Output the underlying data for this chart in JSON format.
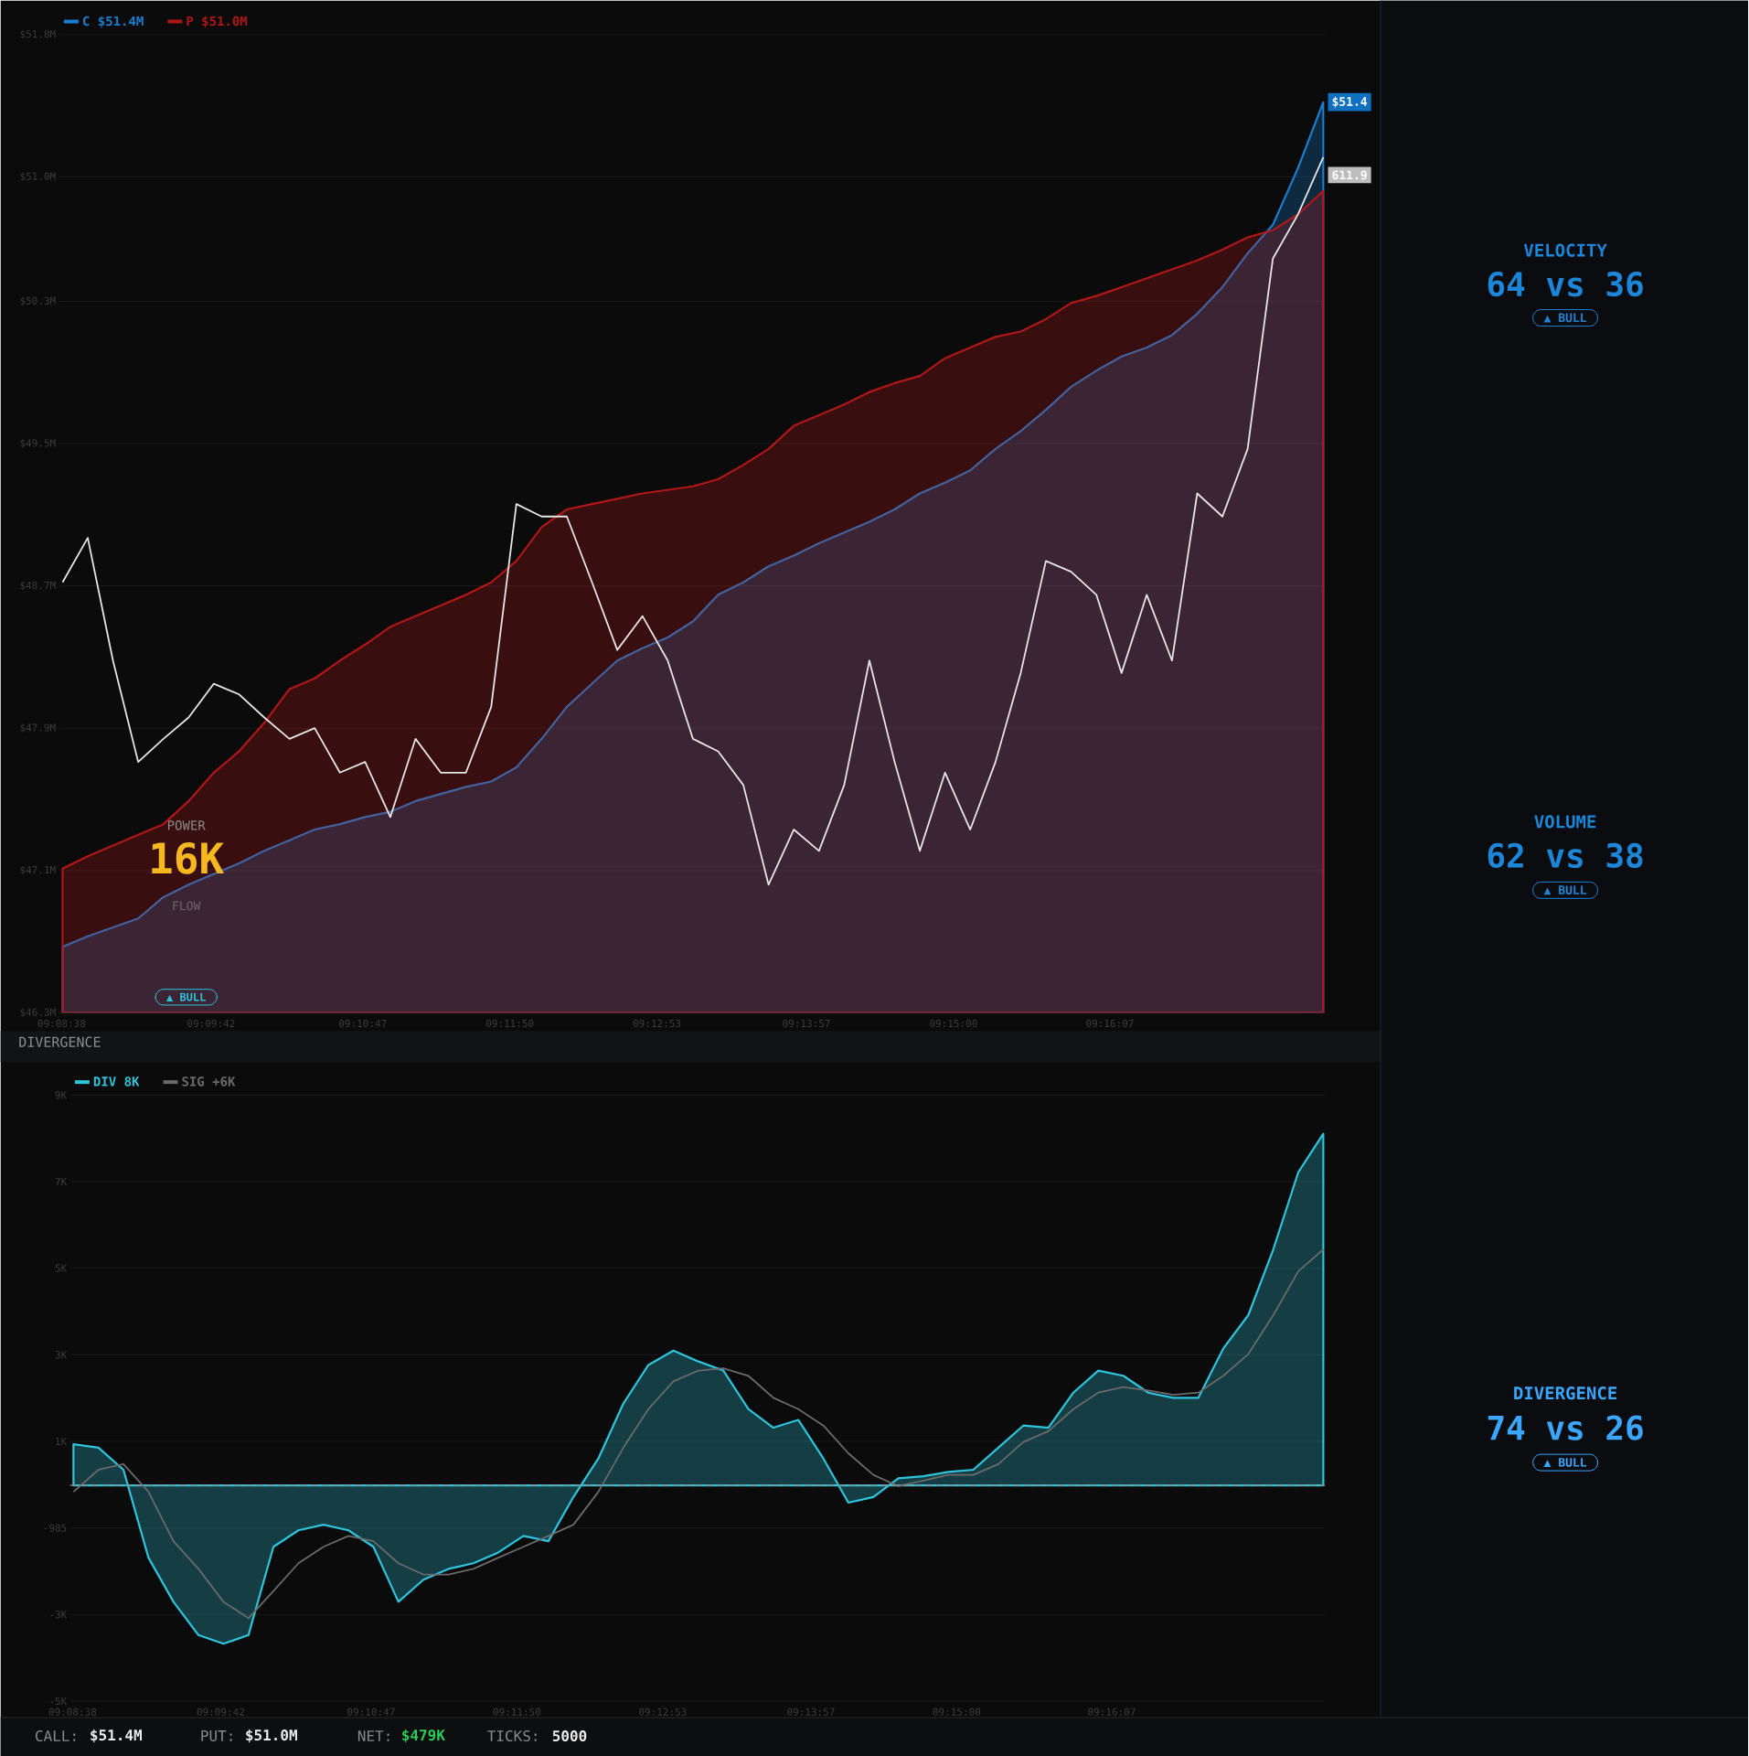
{
  "chart_data": [
    {
      "type": "line",
      "x": [
        9.144,
        9.147,
        9.15,
        9.153,
        9.156,
        9.159,
        9.162,
        9.165,
        9.168,
        9.171,
        9.174,
        9.177,
        9.18,
        9.183,
        9.186,
        9.189,
        9.192,
        9.195,
        9.198,
        9.201,
        9.204,
        9.207,
        9.21,
        9.213,
        9.216,
        9.219,
        9.222,
        9.225,
        9.228,
        9.231,
        9.234,
        9.237,
        9.24,
        9.243,
        9.246,
        9.249,
        9.252,
        9.255,
        9.258,
        9.261,
        9.264,
        9.267,
        9.27,
        9.273,
        9.276,
        9.279,
        9.282,
        9.285,
        9.288,
        9.291,
        9.294
      ],
      "xlim": [
        9.1436,
        9.2942
      ],
      "xticks": [
        {
          "value": 9.14389,
          "label": "09:08:38"
        },
        {
          "value": 9.16167,
          "label": "09:09:42"
        },
        {
          "value": 9.17972,
          "label": "09:10:47"
        },
        {
          "value": 9.19722,
          "label": "09:11:50"
        },
        {
          "value": 9.21472,
          "label": "09:12:53"
        },
        {
          "value": 9.2325,
          "label": "09:13:57"
        },
        {
          "value": 9.25,
          "label": "09:15:00"
        },
        {
          "value": 9.26861,
          "label": "09:16:07"
        }
      ],
      "ylim": [
        46.3,
        51.8
      ],
      "yticks": [
        {
          "value": 46.3,
          "label": "$46.3M"
        },
        {
          "value": 47.1,
          "label": "$47.1M"
        },
        {
          "value": 47.9,
          "label": "$47.9M"
        },
        {
          "value": 48.7,
          "label": "$48.7M"
        },
        {
          "value": 49.5,
          "label": "$49.5M"
        },
        {
          "value": 50.3,
          "label": "$50.3M"
        },
        {
          "value": 51.0,
          "label": "$51.0M"
        },
        {
          "value": 51.8,
          "label": "$51.8M"
        }
      ],
      "grid": "y",
      "legend": "top left",
      "series": [
        {
          "name": "C $51.4M",
          "type": "area",
          "color": "#1a7fd0",
          "values": [
            46.67,
            46.73,
            46.78,
            46.83,
            46.95,
            47.02,
            47.08,
            47.14,
            47.21,
            47.27,
            47.33,
            47.36,
            47.4,
            47.43,
            47.49,
            47.53,
            47.57,
            47.6,
            47.68,
            47.84,
            48.02,
            48.15,
            48.28,
            48.35,
            48.41,
            48.5,
            48.65,
            48.72,
            48.81,
            48.87,
            48.94,
            49.0,
            49.06,
            49.13,
            49.22,
            49.28,
            49.35,
            49.47,
            49.57,
            49.69,
            49.82,
            49.91,
            49.99,
            50.04,
            50.11,
            50.23,
            50.38,
            50.57,
            50.73,
            51.05,
            51.42
          ]
        },
        {
          "name": "P $51.0M",
          "type": "area",
          "color": "#b01818",
          "values": [
            47.11,
            47.18,
            47.24,
            47.3,
            47.36,
            47.49,
            47.65,
            47.77,
            47.93,
            48.12,
            48.18,
            48.28,
            48.37,
            48.47,
            48.53,
            48.59,
            48.65,
            48.72,
            48.84,
            49.03,
            49.13,
            49.16,
            49.19,
            49.22,
            49.24,
            49.26,
            49.3,
            49.38,
            49.47,
            49.6,
            49.66,
            49.72,
            49.79,
            49.84,
            49.88,
            49.98,
            50.04,
            50.1,
            50.13,
            50.2,
            50.29,
            50.33,
            50.38,
            50.43,
            50.48,
            50.53,
            50.59,
            50.66,
            50.7,
            50.79,
            50.92
          ]
        },
        {
          "type": "line",
          "color": "#e6e6e6",
          "values": [
            48.72,
            48.97,
            48.28,
            47.71,
            47.84,
            47.96,
            48.15,
            48.09,
            47.96,
            47.84,
            47.9,
            47.65,
            47.71,
            47.4,
            47.84,
            47.65,
            47.65,
            48.02,
            49.16,
            49.09,
            49.09,
            48.72,
            48.34,
            48.53,
            48.28,
            47.84,
            47.77,
            47.58,
            47.02,
            47.33,
            47.21,
            47.58,
            48.28,
            47.71,
            47.21,
            47.65,
            47.33,
            47.71,
            48.21,
            48.84,
            48.78,
            48.65,
            48.21,
            48.65,
            48.28,
            49.22,
            49.09,
            49.47,
            50.54,
            50.79,
            51.11
          ]
        }
      ],
      "annotations": [
        {
          "text": "$51.4",
          "x": 9.294,
          "y": 51.42
        },
        {
          "text": "611.9",
          "x": 9.294,
          "y": 51.01
        }
      ]
    },
    {
      "type": "line",
      "title": "DIVERGENCE",
      "x": [
        9.144,
        9.147,
        9.15,
        9.153,
        9.156,
        9.159,
        9.162,
        9.165,
        9.168,
        9.171,
        9.174,
        9.177,
        9.18,
        9.183,
        9.186,
        9.189,
        9.192,
        9.195,
        9.198,
        9.201,
        9.204,
        9.207,
        9.21,
        9.213,
        9.216,
        9.219,
        9.222,
        9.225,
        9.228,
        9.231,
        9.234,
        9.237,
        9.24,
        9.243,
        9.246,
        9.249,
        9.252,
        9.255,
        9.258,
        9.261,
        9.264,
        9.267,
        9.27,
        9.273,
        9.276,
        9.279,
        9.282,
        9.285,
        9.288,
        9.291,
        9.294
      ],
      "xlim": [
        9.1436,
        9.2942
      ],
      "xticks": [
        {
          "value": 9.14389,
          "label": "09:08:38"
        },
        {
          "value": 9.16167,
          "label": "09:09:42"
        },
        {
          "value": 9.17972,
          "label": "09:10:47"
        },
        {
          "value": 9.19722,
          "label": "09:11:50"
        },
        {
          "value": 9.21472,
          "label": "09:12:53"
        },
        {
          "value": 9.2325,
          "label": "09:13:57"
        },
        {
          "value": 9.25,
          "label": "09:15:00"
        },
        {
          "value": 9.26861,
          "label": "09:16:07"
        }
      ],
      "ylim": [
        -4985,
        9015
      ],
      "yticks": [
        {
          "value": 9015,
          "label": "9K"
        },
        {
          "value": 7015,
          "label": "7K"
        },
        {
          "value": 5015,
          "label": "5K"
        },
        {
          "value": 3015,
          "label": "3K"
        },
        {
          "value": 1015,
          "label": "1K"
        },
        -985,
        {
          "value": -2985,
          "label": "-3K"
        },
        {
          "value": -4985,
          "label": "-5K"
        }
      ],
      "grid": "y",
      "legend": "top left",
      "ref_lines": [
        {
          "axis": "y",
          "value": 0,
          "color": "#8a8a8a",
          "line_style": "dashed"
        }
      ],
      "series": [
        {
          "name": "DIV 8K",
          "type": "area",
          "color": "#2ec4dc",
          "values": [
            950,
            870,
            360,
            -1670,
            -2690,
            -3460,
            -3660,
            -3460,
            -1420,
            -1040,
            -910,
            -1040,
            -1420,
            -2690,
            -2180,
            -1930,
            -1800,
            -1550,
            -1170,
            -1290,
            -270,
            620,
            1890,
            2780,
            3110,
            2860,
            2650,
            1760,
            1330,
            1510,
            620,
            -400,
            -270,
            160,
            210,
            310,
            360,
            870,
            1380,
            1330,
            2140,
            2650,
            2530,
            2140,
            2020,
            2020,
            3160,
            3930,
            5450,
            7230,
            8120
          ]
        },
        {
          "name": "SIG +6K",
          "type": "line",
          "color": "#6a6a6a",
          "values": [
            -150,
            360,
            490,
            -150,
            -1290,
            -1930,
            -2690,
            -3070,
            -2440,
            -1800,
            -1420,
            -1170,
            -1290,
            -1800,
            -2060,
            -2060,
            -1930,
            -1670,
            -1420,
            -1170,
            -910,
            -150,
            870,
            1760,
            2400,
            2650,
            2700,
            2530,
            2020,
            1760,
            1380,
            740,
            240,
            -20,
            110,
            240,
            240,
            490,
            1000,
            1250,
            1760,
            2140,
            2270,
            2190,
            2090,
            2140,
            2530,
            3030,
            3930,
            4940,
            5450
          ]
        }
      ]
    },
    {
      "type": "other",
      "annotations": [
        "POWER",
        "16K",
        "FLOW",
        "▲ BULL",
        "VELOCITY",
        "64 vs 36",
        "▲ BULL",
        "VOLUME",
        "62 vs 38",
        "▲ BULL",
        "DIVERGENCE",
        "74 vs 26",
        "▲ BULL",
        "CALL:",
        "$51.4M",
        "PUT:",
        "$51.0M",
        "NET:",
        "$479K",
        "TICKS:",
        "5000"
      ]
    }
  ]
}
